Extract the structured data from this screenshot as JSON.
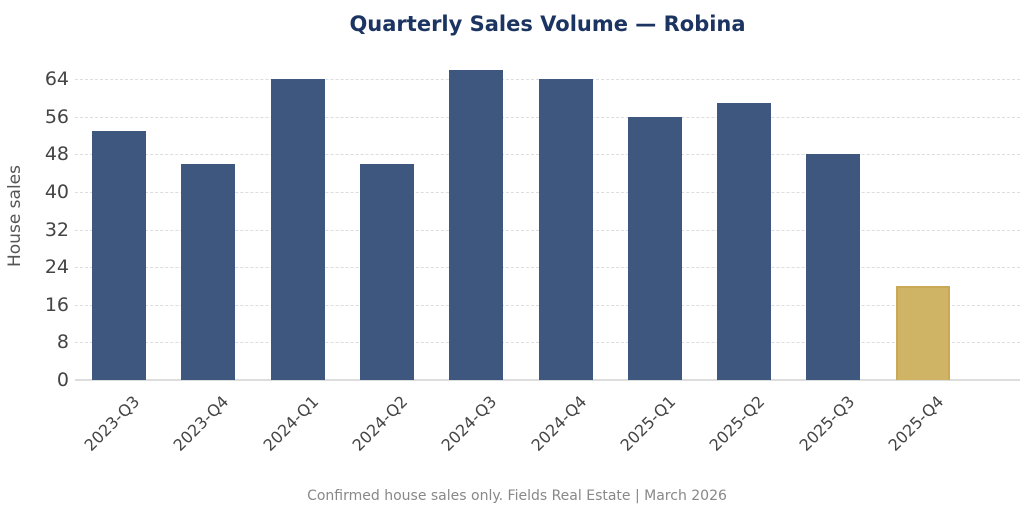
{
  "chart_data": {
    "type": "bar",
    "title": "Quarterly Sales Volume — Robina",
    "xlabel": "",
    "ylabel": "House sales",
    "categories": [
      "2023-Q3",
      "2023-Q4",
      "2024-Q1",
      "2024-Q2",
      "2024-Q3",
      "2024-Q4",
      "2025-Q1",
      "2025-Q2",
      "2025-Q3",
      "2025-Q4"
    ],
    "values": [
      53,
      46,
      64,
      46,
      66,
      64,
      56,
      59,
      48,
      20
    ],
    "highlighted_category": "2025-Q4",
    "ylim": [
      0,
      68
    ],
    "yticks": [
      0,
      8,
      16,
      24,
      32,
      40,
      48,
      56,
      64
    ],
    "grid": true,
    "legend": null,
    "colors": {
      "primary": "#3d577e",
      "highlight": "#d0b466",
      "title": "#1c3461"
    }
  },
  "footer": "Confirmed house sales only. Fields Real Estate | March 2026"
}
